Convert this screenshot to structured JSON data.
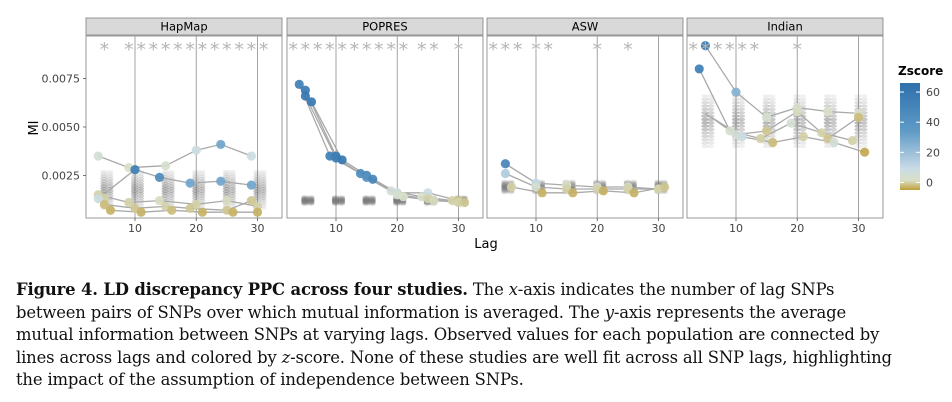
{
  "chart_data": {
    "type": "scatter",
    "panels": [
      "HapMap",
      "POPRES",
      "ASW",
      "Indian"
    ],
    "xlabel": "Lag",
    "ylabel": "MI",
    "xticks": [
      10,
      20,
      30
    ],
    "xlim": [
      2,
      34
    ],
    "yticks": [
      0.0025,
      0.005,
      0.0075
    ],
    "ytick_labels": [
      "0.0025",
      "0.0050",
      "0.0075"
    ],
    "ylim": [
      0.0003,
      0.0097
    ],
    "legend": {
      "title": "Zscore",
      "ticks": [
        0,
        20,
        40,
        60
      ],
      "range": [
        -5,
        66
      ],
      "colors": [
        "#bf9e3a",
        "#d9dfc7",
        "#c9dbe6",
        "#5f9bc6",
        "#2e70ad"
      ],
      "placement": "right"
    },
    "series": [
      {
        "panel": "HapMap",
        "significance_lags": [
          5,
          9,
          11,
          13,
          15,
          17,
          19,
          21,
          23,
          25,
          27,
          29,
          31
        ],
        "lines": [
          {
            "x": [
              4,
              9,
              15,
              20,
              24,
              29
            ],
            "y": [
              0.0035,
              0.0029,
              0.003,
              0.0038,
              0.0041,
              0.0035
            ]
          },
          {
            "x": [
              4,
              10,
              14,
              19,
              24,
              29
            ],
            "y": [
              0.0013,
              0.0028,
              0.0024,
              0.0021,
              0.0022,
              0.002
            ]
          },
          {
            "x": [
              4,
              9,
              14,
              20,
              25,
              30
            ],
            "y": [
              0.0015,
              0.0011,
              0.0012,
              0.001,
              0.0012,
              0.0009
            ]
          },
          {
            "x": [
              5,
              10,
              15,
              19,
              25,
              29
            ],
            "y": [
              0.001,
              0.0008,
              0.0009,
              0.0008,
              0.0007,
              0.0012
            ]
          },
          {
            "x": [
              6,
              11,
              16,
              21,
              26,
              30
            ],
            "y": [
              0.0007,
              0.0006,
              0.0007,
              0.0006,
              0.0006,
              0.0006
            ]
          }
        ],
        "points": [
          {
            "x": 4,
            "y": 0.0035,
            "z": 5
          },
          {
            "x": 9,
            "y": 0.0029,
            "z": 2
          },
          {
            "x": 10,
            "y": 0.0028,
            "z": 55
          },
          {
            "x": 15,
            "y": 0.003,
            "z": 3
          },
          {
            "x": 14,
            "y": 0.0024,
            "z": 45
          },
          {
            "x": 20,
            "y": 0.0038,
            "z": 8
          },
          {
            "x": 24,
            "y": 0.0041,
            "z": 30
          },
          {
            "x": 19,
            "y": 0.0021,
            "z": 30
          },
          {
            "x": 24,
            "y": 0.0022,
            "z": 30
          },
          {
            "x": 29,
            "y": 0.002,
            "z": 30
          },
          {
            "x": 29,
            "y": 0.0035,
            "z": 8
          },
          {
            "x": 4,
            "y": 0.0015,
            "z": 0
          },
          {
            "x": 5,
            "y": 0.0013,
            "z": 0
          },
          {
            "x": 4,
            "y": 0.0013,
            "z": 8
          },
          {
            "x": 5,
            "y": 0.001,
            "z": -2
          },
          {
            "x": 6,
            "y": 0.0007,
            "z": -3
          },
          {
            "x": 9,
            "y": 0.0011,
            "z": 0
          },
          {
            "x": 10,
            "y": 0.0008,
            "z": -1
          },
          {
            "x": 11,
            "y": 0.0006,
            "z": -3
          },
          {
            "x": 14,
            "y": 0.0012,
            "z": 1
          },
          {
            "x": 15,
            "y": 0.0009,
            "z": 0
          },
          {
            "x": 16,
            "y": 0.0007,
            "z": -2
          },
          {
            "x": 20,
            "y": 0.001,
            "z": 0
          },
          {
            "x": 19,
            "y": 0.0008,
            "z": -1
          },
          {
            "x": 21,
            "y": 0.0006,
            "z": -3
          },
          {
            "x": 25,
            "y": 0.0012,
            "z": 1
          },
          {
            "x": 25,
            "y": 0.0007,
            "z": -1
          },
          {
            "x": 26,
            "y": 0.0006,
            "z": -3
          },
          {
            "x": 30,
            "y": 0.0009,
            "z": 0
          },
          {
            "x": 29,
            "y": 0.0012,
            "z": -1
          },
          {
            "x": 30,
            "y": 0.0006,
            "z": -3
          }
        ]
      },
      {
        "panel": "POPRES",
        "significance_lags": [
          3,
          5,
          7,
          9,
          11,
          13,
          15,
          17,
          19,
          21,
          24,
          26,
          30
        ],
        "lines": [
          {
            "x": [
              4,
              9,
              14,
              19,
              24,
              29
            ],
            "y": [
              0.0072,
              0.0035,
              0.0026,
              0.0017,
              0.0014,
              0.0012
            ]
          },
          {
            "x": [
              5,
              10,
              15,
              20,
              25,
              30
            ],
            "y": [
              0.0069,
              0.0035,
              0.0025,
              0.0016,
              0.0016,
              0.0012
            ]
          },
          {
            "x": [
              5,
              10,
              15,
              20,
              25,
              30
            ],
            "y": [
              0.0066,
              0.0034,
              0.0024,
              0.0015,
              0.0013,
              0.0011
            ]
          },
          {
            "x": [
              6,
              11,
              16,
              21,
              26,
              31
            ],
            "y": [
              0.0063,
              0.0033,
              0.0023,
              0.0014,
              0.0012,
              0.0011
            ]
          }
        ],
        "points": [
          {
            "x": 4,
            "y": 0.0072,
            "z": 55
          },
          {
            "x": 5,
            "y": 0.0069,
            "z": 58
          },
          {
            "x": 5,
            "y": 0.0066,
            "z": 60
          },
          {
            "x": 6,
            "y": 0.0063,
            "z": 60
          },
          {
            "x": 9,
            "y": 0.0035,
            "z": 55
          },
          {
            "x": 10,
            "y": 0.0035,
            "z": 58
          },
          {
            "x": 10,
            "y": 0.0034,
            "z": 55
          },
          {
            "x": 11,
            "y": 0.0033,
            "z": 60
          },
          {
            "x": 14,
            "y": 0.0026,
            "z": 45
          },
          {
            "x": 15,
            "y": 0.0025,
            "z": 50
          },
          {
            "x": 15,
            "y": 0.0024,
            "z": 40
          },
          {
            "x": 16,
            "y": 0.0023,
            "z": 50
          },
          {
            "x": 19,
            "y": 0.0017,
            "z": 5
          },
          {
            "x": 20,
            "y": 0.0016,
            "z": 10
          },
          {
            "x": 20,
            "y": 0.0015,
            "z": 3
          },
          {
            "x": 21,
            "y": 0.0014,
            "z": 2
          },
          {
            "x": 24,
            "y": 0.0014,
            "z": 2
          },
          {
            "x": 25,
            "y": 0.0016,
            "z": 8
          },
          {
            "x": 25,
            "y": 0.0013,
            "z": 0
          },
          {
            "x": 26,
            "y": 0.0012,
            "z": 1
          },
          {
            "x": 29,
            "y": 0.0012,
            "z": 0
          },
          {
            "x": 30,
            "y": 0.0012,
            "z": -1
          },
          {
            "x": 30,
            "y": 0.0011,
            "z": 0
          },
          {
            "x": 31,
            "y": 0.0011,
            "z": -1
          }
        ]
      },
      {
        "panel": "ASW",
        "significance_lags": [
          3,
          5,
          7,
          10,
          12,
          20,
          25
        ],
        "lines": [
          {
            "x": [
              5,
              10,
              15,
              20,
              25,
              30
            ],
            "y": [
              0.0031,
              0.0021,
              0.002,
              0.0019,
              0.0019,
              0.0018
            ]
          },
          {
            "x": [
              5,
              10,
              15,
              20,
              25,
              30
            ],
            "y": [
              0.0026,
              0.0019,
              0.0018,
              0.0018,
              0.0018,
              0.0018
            ]
          },
          {
            "x": [
              6,
              11,
              16,
              21,
              26,
              31
            ],
            "y": [
              0.0019,
              0.0016,
              0.0016,
              0.0017,
              0.0016,
              0.0019
            ]
          }
        ],
        "points": [
          {
            "x": 5,
            "y": 0.0031,
            "z": 50
          },
          {
            "x": 5,
            "y": 0.0026,
            "z": 15
          },
          {
            "x": 6,
            "y": 0.0019,
            "z": 0
          },
          {
            "x": 10,
            "y": 0.0021,
            "z": 10
          },
          {
            "x": 10,
            "y": 0.0019,
            "z": 3
          },
          {
            "x": 11,
            "y": 0.0016,
            "z": -3
          },
          {
            "x": 15,
            "y": 0.002,
            "z": 2
          },
          {
            "x": 15,
            "y": 0.0018,
            "z": 0
          },
          {
            "x": 16,
            "y": 0.0016,
            "z": -3
          },
          {
            "x": 20,
            "y": 0.0019,
            "z": 5
          },
          {
            "x": 20,
            "y": 0.0018,
            "z": 0
          },
          {
            "x": 21,
            "y": 0.0017,
            "z": -3
          },
          {
            "x": 25,
            "y": 0.0019,
            "z": 2
          },
          {
            "x": 25,
            "y": 0.0018,
            "z": 0
          },
          {
            "x": 26,
            "y": 0.0016,
            "z": -3
          },
          {
            "x": 30,
            "y": 0.0018,
            "z": 1
          },
          {
            "x": 30,
            "y": 0.0018,
            "z": 0
          },
          {
            "x": 31,
            "y": 0.0019,
            "z": -1
          }
        ]
      },
      {
        "panel": "Indian",
        "significance_lags": [
          3,
          5,
          7,
          9,
          11,
          13,
          20
        ],
        "lines": [
          {
            "x": [
              5,
              10,
              15,
              20,
              25,
              30
            ],
            "y": [
              0.0092,
              0.0068,
              0.0055,
              0.006,
              0.0058,
              0.0057
            ]
          },
          {
            "x": [
              4,
              9,
              14,
              19,
              24,
              29
            ],
            "y": [
              0.008,
              0.0048,
              0.0044,
              0.0052,
              0.0047,
              0.0043
            ]
          },
          {
            "x": [
              5,
              10,
              15,
              20,
              25,
              30
            ],
            "y": [
              0.0057,
              0.0046,
              0.0048,
              0.0058,
              0.0044,
              0.0055
            ]
          },
          {
            "x": [
              6,
              11,
              16,
              21,
              26,
              31
            ],
            "y": [
              0.0055,
              0.0045,
              0.0042,
              0.0045,
              0.0042,
              0.0037
            ]
          }
        ],
        "points": [
          {
            "x": 5,
            "y": 0.0092,
            "z": 60
          },
          {
            "x": 4,
            "y": 0.008,
            "z": 55
          },
          {
            "x": 10,
            "y": 0.0068,
            "z": 25
          },
          {
            "x": 9,
            "y": 0.0048,
            "z": 3
          },
          {
            "x": 10,
            "y": 0.0046,
            "z": 5
          },
          {
            "x": 11,
            "y": 0.0045,
            "z": 8
          },
          {
            "x": 15,
            "y": 0.0055,
            "z": 3
          },
          {
            "x": 14,
            "y": 0.0044,
            "z": 0
          },
          {
            "x": 15,
            "y": 0.0048,
            "z": -1
          },
          {
            "x": 16,
            "y": 0.0042,
            "z": -2
          },
          {
            "x": 20,
            "y": 0.006,
            "z": 3
          },
          {
            "x": 19,
            "y": 0.0052,
            "z": 4
          },
          {
            "x": 20,
            "y": 0.0058,
            "z": 1
          },
          {
            "x": 21,
            "y": 0.0045,
            "z": 0
          },
          {
            "x": 25,
            "y": 0.0058,
            "z": 2
          },
          {
            "x": 24,
            "y": 0.0047,
            "z": 0
          },
          {
            "x": 25,
            "y": 0.0044,
            "z": -1
          },
          {
            "x": 26,
            "y": 0.0042,
            "z": 5
          },
          {
            "x": 30,
            "y": 0.0057,
            "z": 3
          },
          {
            "x": 29,
            "y": 0.0043,
            "z": 0
          },
          {
            "x": 30,
            "y": 0.0055,
            "z": -2
          },
          {
            "x": 31,
            "y": 0.0037,
            "z": -4
          }
        ]
      }
    ],
    "replicate_bands": [
      {
        "panel": "HapMap",
        "lags": [
          5,
          10,
          15,
          20,
          25,
          30
        ],
        "low": 0.0008,
        "high": 0.0027
      },
      {
        "panel": "POPRES",
        "lags": [
          5,
          10,
          15,
          20,
          25,
          30
        ],
        "low": 0.001,
        "high": 0.0014
      },
      {
        "panel": "ASW",
        "lags": [
          5,
          10,
          15,
          20,
          25,
          30
        ],
        "low": 0.0016,
        "high": 0.0022
      },
      {
        "panel": "Indian",
        "lags": [
          5,
          10,
          15,
          20,
          25,
          30
        ],
        "low": 0.004,
        "high": 0.0066
      }
    ]
  },
  "caption": {
    "label": "Figure 4. LD discrepancy PPC across four studies.",
    "line1": "The",
    "line1_x": "x",
    "line1_rest": "-axis indicates the number of lag SNPs",
    "line2": "between pairs of SNPs over which mutual information is averaged. The",
    "line2_y": "y",
    "line2_rest": "-axis represents the average",
    "line3": "mutual information between SNPs at varying lags. Observed values for each population are connected by",
    "line4": "lines across lags and colored by",
    "line4_z": "z",
    "line4_rest": "-score. None of these studies are well fit across all SNP lags, highlighting",
    "line5": "the impact of the assumption of independence between SNPs."
  }
}
